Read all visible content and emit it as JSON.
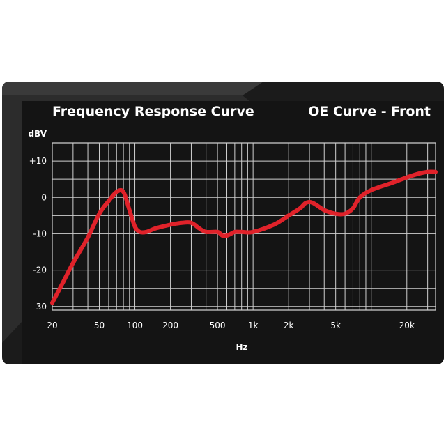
{
  "header": {
    "title": "Frequency Response Curve",
    "subtitle": "OE Curve - Front"
  },
  "colors": {
    "card_background": "#1b1b1b",
    "grid": "#cfcfcf",
    "text": "#ffffff",
    "curve": "#e0222a"
  },
  "chart_data": {
    "type": "line",
    "title": "Frequency Response Curve",
    "subtitle": "OE Curve - Front",
    "xlabel": "Hz",
    "ylabel": "dBV",
    "x_scale": "log",
    "xlim": [
      20,
      35000
    ],
    "ylim": [
      -31,
      15
    ],
    "x_ticks": [
      {
        "value": 20,
        "label": "20"
      },
      {
        "value": 50,
        "label": "50"
      },
      {
        "value": 100,
        "label": "100"
      },
      {
        "value": 200,
        "label": "200"
      },
      {
        "value": 500,
        "label": "500"
      },
      {
        "value": 1000,
        "label": "1k"
      },
      {
        "value": 2000,
        "label": "2k"
      },
      {
        "value": 5000,
        "label": "5k"
      },
      {
        "value": 20000,
        "label": "20k"
      }
    ],
    "y_ticks": [
      {
        "value": 10,
        "label": "+10"
      },
      {
        "value": 0,
        "label": "0"
      },
      {
        "value": -10,
        "label": "-10"
      },
      {
        "value": -20,
        "label": "-20"
      },
      {
        "value": -30,
        "label": "-30"
      }
    ],
    "grid": true,
    "series": [
      {
        "x": [
          20,
          25,
          30,
          40,
          50,
          60,
          70,
          80,
          90,
          100,
          110,
          125,
          150,
          200,
          250,
          300,
          350,
          400,
          500,
          550,
          600,
          650,
          700,
          800,
          1000,
          1500,
          2000,
          2500,
          2800,
          3200,
          4000,
          5000,
          6000,
          7000,
          8000,
          10000,
          15000,
          20000,
          25000,
          30000,
          35000
        ],
        "y": [
          -29,
          -23,
          -18,
          -11,
          -4.5,
          -1,
          1.5,
          1.5,
          -3.5,
          -8,
          -9.5,
          -9.5,
          -8.5,
          -7.5,
          -7,
          -7,
          -8.5,
          -9.5,
          -9.5,
          -10.5,
          -10.5,
          -10,
          -9.5,
          -9.5,
          -9.5,
          -7.5,
          -5,
          -3,
          -1.5,
          -1.5,
          -3.5,
          -4.5,
          -4.5,
          -3,
          0,
          2,
          4,
          5.5,
          6.5,
          7,
          7
        ]
      }
    ]
  }
}
